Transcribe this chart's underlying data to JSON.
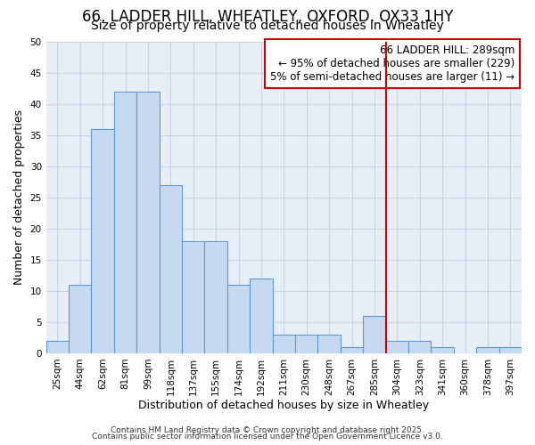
{
  "title": "66, LADDER HILL, WHEATLEY, OXFORD, OX33 1HY",
  "subtitle": "Size of property relative to detached houses in Wheatley",
  "xlabel": "Distribution of detached houses by size in Wheatley",
  "ylabel": "Number of detached properties",
  "bar_labels": [
    "25sqm",
    "44sqm",
    "62sqm",
    "81sqm",
    "99sqm",
    "118sqm",
    "137sqm",
    "155sqm",
    "174sqm",
    "192sqm",
    "211sqm",
    "230sqm",
    "248sqm",
    "267sqm",
    "285sqm",
    "304sqm",
    "323sqm",
    "341sqm",
    "360sqm",
    "378sqm",
    "397sqm"
  ],
  "bar_values": [
    2,
    11,
    36,
    42,
    42,
    27,
    18,
    18,
    11,
    12,
    3,
    3,
    3,
    1,
    6,
    2,
    2,
    1,
    0,
    1,
    1
  ],
  "bar_color": "#c6d9f0",
  "bar_edge_color": "#5b9bd5",
  "grid_color": "#c8d4e4",
  "background_color": "#e8eef5",
  "vline_x": 14.5,
  "vline_color": "#cc0000",
  "annotation_text": "66 LADDER HILL: 289sqm\n← 95% of detached houses are smaller (229)\n5% of semi-detached houses are larger (11) →",
  "annotation_box_edgecolor": "#cc0000",
  "ylim": [
    0,
    50
  ],
  "yticks": [
    0,
    5,
    10,
    15,
    20,
    25,
    30,
    35,
    40,
    45,
    50
  ],
  "footnote1": "Contains HM Land Registry data © Crown copyright and database right 2025.",
  "footnote2": "Contains public sector information licensed under the Open Government Licence v3.0.",
  "title_fontsize": 12,
  "subtitle_fontsize": 10,
  "axis_label_fontsize": 9,
  "tick_fontsize": 7.5,
  "annotation_fontsize": 8.5,
  "footnote_fontsize": 6.5
}
